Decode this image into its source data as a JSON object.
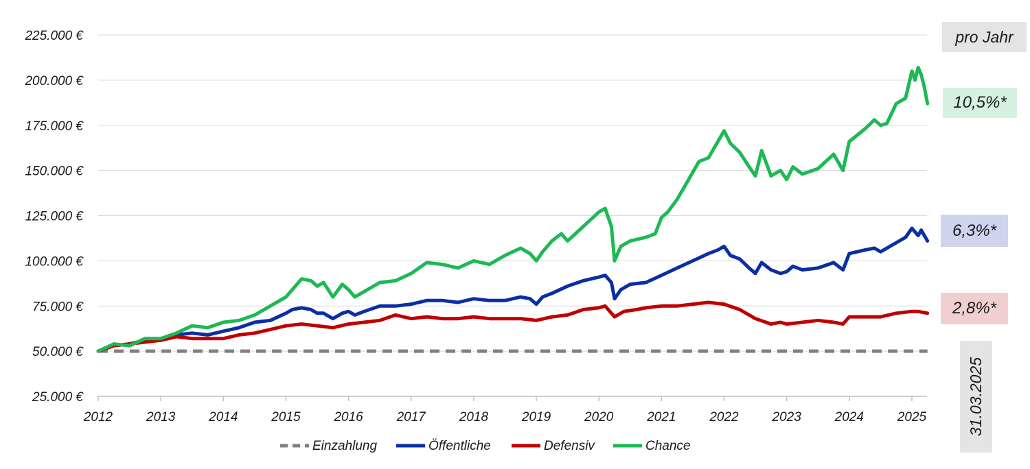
{
  "chart_data": {
    "type": "line",
    "title": "",
    "xlabel": "",
    "ylabel": "",
    "xlim": [
      2012.0,
      2025.25
    ],
    "ylim": [
      25000,
      225000
    ],
    "ytick_values": [
      25000,
      50000,
      75000,
      100000,
      125000,
      150000,
      175000,
      200000,
      225000
    ],
    "ytick_labels": [
      "25.000 €",
      "50.000 €",
      "75.000 €",
      "100.000 €",
      "125.000 €",
      "150.000 €",
      "175.000 €",
      "200.000 €",
      "225.000 €"
    ],
    "xtick_values": [
      2012,
      2013,
      2014,
      2015,
      2016,
      2017,
      2018,
      2019,
      2020,
      2021,
      2022,
      2023,
      2024,
      2025
    ],
    "xtick_labels": [
      "2012",
      "2013",
      "2014",
      "2015",
      "2016",
      "2017",
      "2018",
      "2019",
      "2020",
      "2021",
      "2022",
      "2023",
      "2024",
      "2025"
    ],
    "grid": true,
    "legend_position": "bottom",
    "series": [
      {
        "name": "Einzahlung",
        "color": "#808080",
        "dashed": true,
        "x": [
          2012.0,
          2025.25
        ],
        "y": [
          50000,
          50000
        ]
      },
      {
        "name": "Öffentliche",
        "color": "#0a2ea3",
        "dashed": false,
        "x": [
          2012.0,
          2012.25,
          2012.5,
          2012.75,
          2013.0,
          2013.25,
          2013.5,
          2013.75,
          2014.0,
          2014.25,
          2014.5,
          2014.75,
          2015.0,
          2015.1,
          2015.25,
          2015.4,
          2015.5,
          2015.6,
          2015.75,
          2015.9,
          2016.0,
          2016.1,
          2016.25,
          2016.5,
          2016.75,
          2017.0,
          2017.25,
          2017.5,
          2017.75,
          2018.0,
          2018.25,
          2018.5,
          2018.75,
          2018.9,
          2019.0,
          2019.1,
          2019.25,
          2019.5,
          2019.75,
          2020.0,
          2020.1,
          2020.2,
          2020.25,
          2020.35,
          2020.5,
          2020.75,
          2021.0,
          2021.25,
          2021.5,
          2021.75,
          2021.9,
          2022.0,
          2022.1,
          2022.25,
          2022.4,
          2022.5,
          2022.6,
          2022.75,
          2022.9,
          2023.0,
          2023.1,
          2023.25,
          2023.5,
          2023.75,
          2023.9,
          2024.0,
          2024.25,
          2024.4,
          2024.5,
          2024.75,
          2024.9,
          2025.0,
          2025.1,
          2025.15,
          2025.25
        ],
        "y": [
          50000,
          53000,
          54000,
          56000,
          57000,
          59000,
          60000,
          59000,
          61000,
          63000,
          66000,
          67000,
          71000,
          73000,
          74000,
          73000,
          71000,
          71000,
          68000,
          71000,
          72000,
          70000,
          72000,
          75000,
          75000,
          76000,
          78000,
          78000,
          77000,
          79000,
          78000,
          78000,
          80000,
          79000,
          76000,
          80000,
          82000,
          86000,
          89000,
          91000,
          92000,
          88000,
          79000,
          84000,
          87000,
          88000,
          92000,
          96000,
          100000,
          104000,
          106000,
          108000,
          103000,
          101000,
          96000,
          93000,
          99000,
          95000,
          93000,
          94000,
          97000,
          95000,
          96000,
          99000,
          95000,
          104000,
          106000,
          107000,
          105000,
          110000,
          113000,
          118000,
          114000,
          117000,
          111000
        ]
      },
      {
        "name": "Defensiv",
        "color": "#c00000",
        "dashed": false,
        "x": [
          2012.0,
          2012.25,
          2012.5,
          2012.75,
          2013.0,
          2013.25,
          2013.5,
          2013.75,
          2014.0,
          2014.25,
          2014.5,
          2014.75,
          2015.0,
          2015.25,
          2015.5,
          2015.75,
          2016.0,
          2016.25,
          2016.5,
          2016.75,
          2017.0,
          2017.25,
          2017.5,
          2017.75,
          2018.0,
          2018.25,
          2018.5,
          2018.75,
          2019.0,
          2019.25,
          2019.5,
          2019.75,
          2020.0,
          2020.1,
          2020.25,
          2020.4,
          2020.6,
          2020.75,
          2021.0,
          2021.25,
          2021.5,
          2021.75,
          2022.0,
          2022.25,
          2022.5,
          2022.75,
          2022.9,
          2023.0,
          2023.25,
          2023.5,
          2023.75,
          2023.9,
          2024.0,
          2024.25,
          2024.5,
          2024.75,
          2025.0,
          2025.1,
          2025.25
        ],
        "y": [
          50000,
          53000,
          54000,
          55000,
          56000,
          58000,
          57000,
          57000,
          57000,
          59000,
          60000,
          62000,
          64000,
          65000,
          64000,
          63000,
          65000,
          66000,
          67000,
          70000,
          68000,
          69000,
          68000,
          68000,
          69000,
          68000,
          68000,
          68000,
          67000,
          69000,
          70000,
          73000,
          74000,
          75000,
          69000,
          72000,
          73000,
          74000,
          75000,
          75000,
          76000,
          77000,
          76000,
          73000,
          68000,
          65000,
          66000,
          65000,
          66000,
          67000,
          66000,
          65000,
          69000,
          69000,
          69000,
          71000,
          72000,
          72000,
          71000
        ]
      },
      {
        "name": "Chance",
        "color": "#1db954",
        "dashed": false,
        "x": [
          2012.0,
          2012.25,
          2012.5,
          2012.75,
          2013.0,
          2013.25,
          2013.5,
          2013.75,
          2014.0,
          2014.25,
          2014.5,
          2014.75,
          2015.0,
          2015.25,
          2015.4,
          2015.5,
          2015.6,
          2015.75,
          2015.9,
          2016.0,
          2016.1,
          2016.25,
          2016.5,
          2016.75,
          2017.0,
          2017.25,
          2017.5,
          2017.75,
          2018.0,
          2018.25,
          2018.5,
          2018.75,
          2018.9,
          2019.0,
          2019.1,
          2019.25,
          2019.4,
          2019.5,
          2019.75,
          2020.0,
          2020.1,
          2020.2,
          2020.25,
          2020.35,
          2020.5,
          2020.75,
          2020.9,
          2021.0,
          2021.1,
          2021.25,
          2021.4,
          2021.5,
          2021.6,
          2021.75,
          2021.9,
          2022.0,
          2022.1,
          2022.25,
          2022.4,
          2022.5,
          2022.6,
          2022.75,
          2022.9,
          2023.0,
          2023.1,
          2023.25,
          2023.5,
          2023.75,
          2023.9,
          2024.0,
          2024.25,
          2024.4,
          2024.5,
          2024.6,
          2024.75,
          2024.9,
          2025.0,
          2025.05,
          2025.1,
          2025.15,
          2025.2,
          2025.25
        ],
        "y": [
          50000,
          54000,
          53000,
          57000,
          57000,
          60000,
          64000,
          63000,
          66000,
          67000,
          70000,
          75000,
          80000,
          90000,
          89000,
          86000,
          88000,
          80000,
          87000,
          84000,
          80000,
          83000,
          88000,
          89000,
          93000,
          99000,
          98000,
          96000,
          100000,
          98000,
          103000,
          107000,
          104000,
          100000,
          105000,
          111000,
          115000,
          111000,
          119000,
          127000,
          129000,
          119000,
          100000,
          108000,
          111000,
          113000,
          115000,
          124000,
          127000,
          134000,
          143000,
          149000,
          155000,
          157000,
          166000,
          172000,
          165000,
          160000,
          152000,
          147000,
          161000,
          147000,
          150000,
          145000,
          152000,
          148000,
          151000,
          159000,
          150000,
          166000,
          173000,
          178000,
          175000,
          176000,
          187000,
          190000,
          205000,
          200000,
          207000,
          203000,
          196000,
          187000
        ]
      }
    ]
  },
  "annotations": {
    "per_year_label": "pro Jahr",
    "chance_rate": "10,5%*",
    "oeffentliche_rate": "6,3%*",
    "defensiv_rate": "2,8%*",
    "date_label": "31.03.2025"
  }
}
